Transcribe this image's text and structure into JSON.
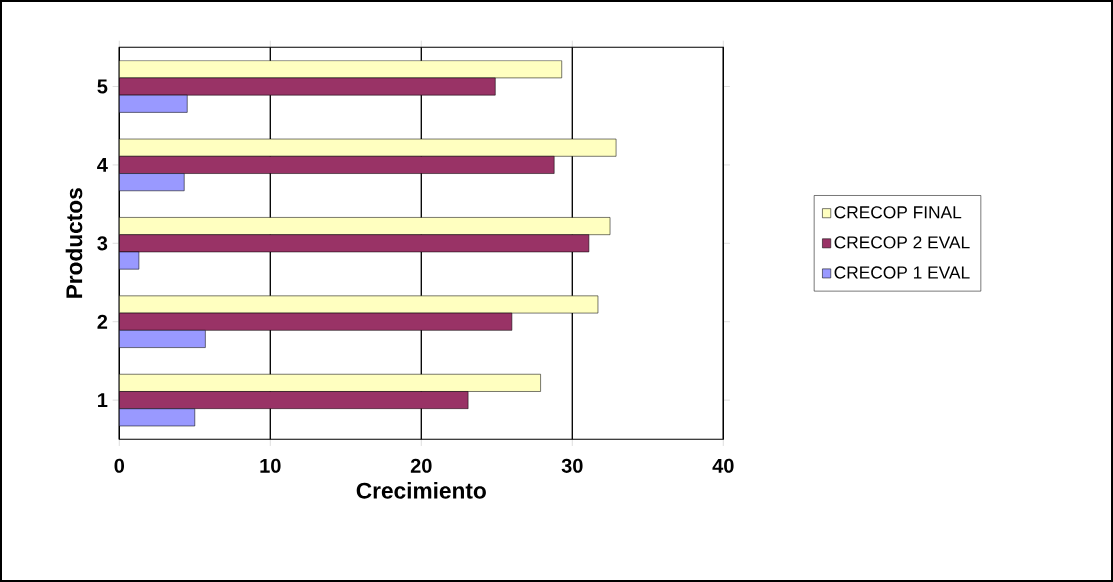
{
  "chart_data": {
    "type": "bar",
    "orientation": "horizontal",
    "xlabel": "Crecimiento",
    "ylabel": "Productos",
    "categories": [
      "5",
      "4",
      "3",
      "2",
      "1"
    ],
    "series": [
      {
        "name": "CRECOP FINAL",
        "color": "#ffffc0",
        "values": [
          29.3,
          32.9,
          32.5,
          31.7,
          27.9
        ]
      },
      {
        "name": "CRECOP 2 EVAL",
        "color": "#993366",
        "values": [
          24.9,
          28.8,
          31.1,
          26.0,
          23.1
        ]
      },
      {
        "name": "CRECOP 1 EVAL",
        "color": "#9999ff",
        "values": [
          4.5,
          4.3,
          1.3,
          5.7,
          5.0
        ]
      }
    ],
    "xlim": [
      0,
      40
    ],
    "xticks": [
      0,
      10,
      20,
      30,
      40
    ],
    "grid": "x",
    "legend": "right"
  }
}
